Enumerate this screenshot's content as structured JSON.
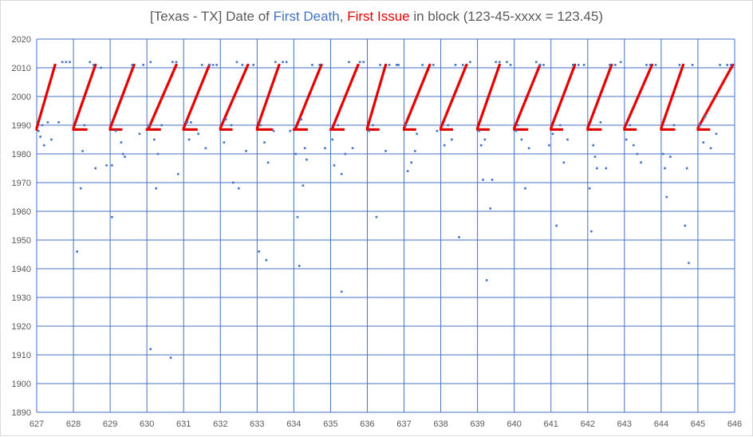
{
  "chart_data": {
    "type": "scatter",
    "title": {
      "prefix": "[Texas - TX] Date of ",
      "series1": "First Death",
      "sep": ", ",
      "series2": "First Issue",
      "suffix": " in block (123-45-xxxx = 123.45)"
    },
    "colors": {
      "first_death": "#4472c4",
      "first_issue": "#e00000",
      "grid": "#4472c4",
      "text": "#595959"
    },
    "xlim": [
      627,
      646
    ],
    "ylim": [
      1890,
      2020
    ],
    "x_ticks": [
      627,
      628,
      629,
      630,
      631,
      632,
      633,
      634,
      635,
      636,
      637,
      638,
      639,
      640,
      641,
      642,
      643,
      644,
      645,
      646
    ],
    "y_ticks": [
      1890,
      1900,
      1910,
      1920,
      1930,
      1940,
      1950,
      1960,
      1970,
      1980,
      1990,
      2000,
      2010,
      2020
    ],
    "grid": true,
    "first_issue_pattern": {
      "description_free": true,
      "flat_value": 1988.5,
      "ramp_start": 1989,
      "ramp_end": 2011
    },
    "first_issue_segments": [
      {
        "flat": [
          627.0,
          627.0
        ],
        "ramp": [
          627.0,
          627.5
        ]
      },
      {
        "flat": [
          628.0,
          628.35
        ],
        "ramp": [
          628.0,
          628.6
        ]
      },
      {
        "flat": [
          629.0,
          629.3
        ],
        "ramp": [
          629.0,
          629.65
        ]
      },
      {
        "flat": [
          630.0,
          630.35
        ],
        "ramp": [
          630.05,
          630.8
        ]
      },
      {
        "flat": [
          631.0,
          631.35
        ],
        "ramp": [
          631.0,
          631.7
        ]
      },
      {
        "flat": [
          632.0,
          632.3
        ],
        "ramp": [
          632.0,
          632.75
        ]
      },
      {
        "flat": [
          633.0,
          633.4
        ],
        "ramp": [
          633.0,
          633.6
        ]
      },
      {
        "flat": [
          634.0,
          634.35
        ],
        "ramp": [
          634.05,
          634.75
        ]
      },
      {
        "flat": [
          635.0,
          635.35
        ],
        "ramp": [
          635.05,
          635.75
        ]
      },
      {
        "flat": [
          636.0,
          636.3
        ],
        "ramp": [
          636.0,
          636.5
        ]
      },
      {
        "flat": [
          637.0,
          637.3
        ],
        "ramp": [
          637.0,
          637.7
        ]
      },
      {
        "flat": [
          638.0,
          638.3
        ],
        "ramp": [
          638.0,
          638.7
        ]
      },
      {
        "flat": [
          639.0,
          639.3
        ],
        "ramp": [
          639.0,
          639.6
        ]
      },
      {
        "flat": [
          640.0,
          640.35
        ],
        "ramp": [
          640.0,
          640.7
        ]
      },
      {
        "flat": [
          641.0,
          641.3
        ],
        "ramp": [
          641.0,
          641.65
        ]
      },
      {
        "flat": [
          642.0,
          642.35
        ],
        "ramp": [
          642.0,
          642.65
        ]
      },
      {
        "flat": [
          643.0,
          643.3
        ],
        "ramp": [
          643.0,
          643.75
        ]
      },
      {
        "flat": [
          644.0,
          644.35
        ],
        "ramp": [
          644.0,
          644.6
        ]
      },
      {
        "flat": [
          645.0,
          645.3
        ],
        "ramp": [
          645.0,
          645.95
        ]
      }
    ],
    "first_death_points": [
      [
        627.05,
        1988
      ],
      [
        627.1,
        1986
      ],
      [
        627.15,
        1990
      ],
      [
        627.2,
        1983
      ],
      [
        627.3,
        1991
      ],
      [
        627.4,
        1985
      ],
      [
        627.6,
        1991
      ],
      [
        627.7,
        2012
      ],
      [
        627.8,
        2012
      ],
      [
        627.9,
        2012
      ],
      [
        628.1,
        1946
      ],
      [
        628.2,
        1968
      ],
      [
        628.25,
        1981
      ],
      [
        628.3,
        1990
      ],
      [
        628.45,
        2012
      ],
      [
        628.55,
        2011
      ],
      [
        628.6,
        1975
      ],
      [
        628.75,
        2010
      ],
      [
        628.9,
        1976
      ],
      [
        629.05,
        1976
      ],
      [
        629.05,
        1958
      ],
      [
        629.15,
        1988
      ],
      [
        629.3,
        1984
      ],
      [
        629.35,
        1980
      ],
      [
        629.4,
        1979
      ],
      [
        629.6,
        2011
      ],
      [
        629.8,
        1987
      ],
      [
        629.9,
        2011
      ],
      [
        630.05,
        1990
      ],
      [
        630.1,
        2012
      ],
      [
        630.2,
        1985
      ],
      [
        630.25,
        1968
      ],
      [
        630.3,
        1980
      ],
      [
        630.4,
        1990
      ],
      [
        630.1,
        1912
      ],
      [
        630.65,
        1909
      ],
      [
        630.7,
        2012
      ],
      [
        630.8,
        2012
      ],
      [
        630.85,
        1973
      ],
      [
        631.1,
        1991
      ],
      [
        631.15,
        1985
      ],
      [
        631.2,
        1991
      ],
      [
        631.4,
        1987
      ],
      [
        631.5,
        2011
      ],
      [
        631.6,
        1982
      ],
      [
        631.7,
        2011
      ],
      [
        631.8,
        2011
      ],
      [
        631.9,
        2011
      ],
      [
        632.1,
        1984
      ],
      [
        632.15,
        1992
      ],
      [
        632.3,
        1990
      ],
      [
        632.35,
        1970
      ],
      [
        632.45,
        2012
      ],
      [
        632.5,
        1968
      ],
      [
        632.6,
        2011
      ],
      [
        632.7,
        1981
      ],
      [
        632.9,
        2011
      ],
      [
        633.05,
        1946
      ],
      [
        633.1,
        1990
      ],
      [
        633.2,
        1984
      ],
      [
        633.25,
        1943
      ],
      [
        633.3,
        1977
      ],
      [
        633.45,
        1988
      ],
      [
        633.5,
        2012
      ],
      [
        633.7,
        2012
      ],
      [
        633.8,
        2012
      ],
      [
        633.9,
        1988
      ],
      [
        634.05,
        1980
      ],
      [
        634.1,
        1958
      ],
      [
        634.15,
        1941
      ],
      [
        634.2,
        1992
      ],
      [
        634.25,
        1969
      ],
      [
        634.3,
        1982
      ],
      [
        634.35,
        1978
      ],
      [
        634.5,
        2011
      ],
      [
        634.7,
        2011
      ],
      [
        634.85,
        1982
      ],
      [
        635.05,
        1985
      ],
      [
        635.1,
        1976
      ],
      [
        635.2,
        1990
      ],
      [
        635.3,
        1973
      ],
      [
        635.4,
        1980
      ],
      [
        635.3,
        1932
      ],
      [
        635.5,
        2012
      ],
      [
        635.6,
        1982
      ],
      [
        635.8,
        2012
      ],
      [
        635.9,
        2012
      ],
      [
        636.05,
        1988
      ],
      [
        636.15,
        1990
      ],
      [
        636.25,
        1958
      ],
      [
        636.35,
        2011
      ],
      [
        636.5,
        1981
      ],
      [
        636.6,
        2011
      ],
      [
        636.8,
        2011
      ],
      [
        636.85,
        2011
      ],
      [
        637.05,
        1990
      ],
      [
        637.1,
        1974
      ],
      [
        637.2,
        1977
      ],
      [
        637.3,
        1981
      ],
      [
        637.35,
        1987
      ],
      [
        637.5,
        2011
      ],
      [
        637.8,
        2011
      ],
      [
        637.9,
        1988
      ],
      [
        638.1,
        1983
      ],
      [
        638.2,
        1990
      ],
      [
        638.3,
        1985
      ],
      [
        638.4,
        2011
      ],
      [
        638.5,
        1951
      ],
      [
        638.6,
        2011
      ],
      [
        638.8,
        2012
      ],
      [
        639.05,
        1988
      ],
      [
        639.1,
        1983
      ],
      [
        639.15,
        1971
      ],
      [
        639.2,
        1985
      ],
      [
        639.25,
        1936
      ],
      [
        639.35,
        1961
      ],
      [
        639.4,
        1971
      ],
      [
        639.5,
        2012
      ],
      [
        639.6,
        2012
      ],
      [
        639.8,
        2012
      ],
      [
        639.9,
        2011
      ],
      [
        640.05,
        1988
      ],
      [
        640.1,
        1990
      ],
      [
        640.2,
        1985
      ],
      [
        640.3,
        1968
      ],
      [
        640.4,
        1982
      ],
      [
        640.6,
        2012
      ],
      [
        640.7,
        2011
      ],
      [
        640.8,
        2011
      ],
      [
        640.95,
        1983
      ],
      [
        641.05,
        1987
      ],
      [
        641.15,
        1955
      ],
      [
        641.25,
        1990
      ],
      [
        641.35,
        1977
      ],
      [
        641.45,
        1985
      ],
      [
        641.6,
        2011
      ],
      [
        641.75,
        2011
      ],
      [
        641.9,
        2011
      ],
      [
        642.05,
        1968
      ],
      [
        642.1,
        1953
      ],
      [
        642.15,
        1983
      ],
      [
        642.2,
        1979
      ],
      [
        642.25,
        1975
      ],
      [
        642.35,
        1991
      ],
      [
        642.5,
        1975
      ],
      [
        642.6,
        2011
      ],
      [
        642.75,
        2011
      ],
      [
        642.9,
        2012
      ],
      [
        643.05,
        1985
      ],
      [
        643.15,
        1990
      ],
      [
        643.25,
        1983
      ],
      [
        643.35,
        1980
      ],
      [
        643.45,
        1977
      ],
      [
        643.6,
        2011
      ],
      [
        643.7,
        2011
      ],
      [
        643.85,
        2011
      ],
      [
        644.05,
        1980
      ],
      [
        644.1,
        1975
      ],
      [
        644.15,
        1965
      ],
      [
        644.25,
        1979
      ],
      [
        644.35,
        1990
      ],
      [
        644.5,
        2011
      ],
      [
        644.65,
        1955
      ],
      [
        644.7,
        1975
      ],
      [
        644.75,
        1942
      ],
      [
        644.85,
        2011
      ],
      [
        645.05,
        1990
      ],
      [
        645.15,
        1984
      ],
      [
        645.2,
        1993
      ],
      [
        645.35,
        1982
      ],
      [
        645.5,
        1987
      ],
      [
        645.6,
        2011
      ],
      [
        645.8,
        2011
      ],
      [
        645.9,
        2011
      ]
    ]
  }
}
